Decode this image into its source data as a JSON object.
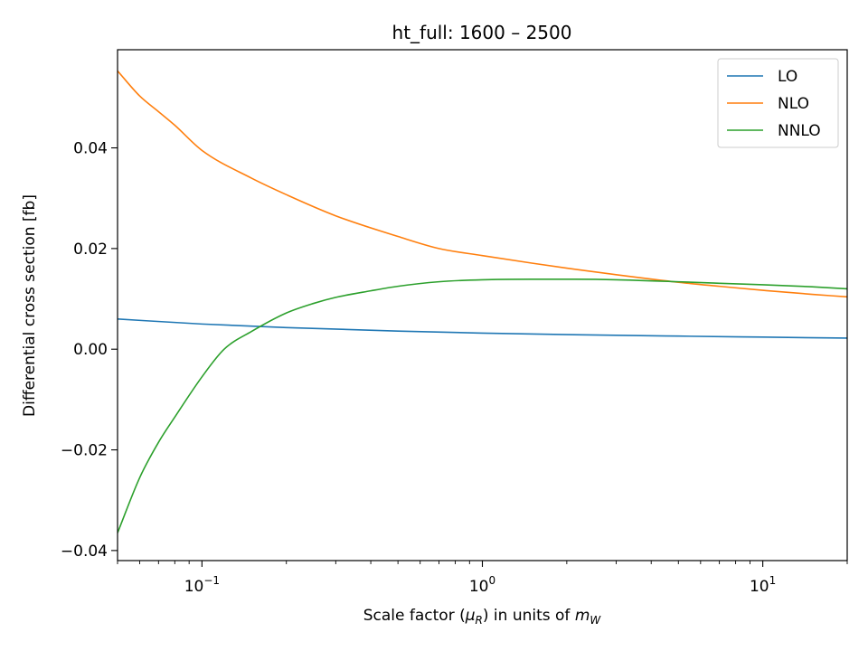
{
  "chart_data": {
    "type": "line",
    "title": "ht_full: 1600 – 2500",
    "xlabel": "Scale factor (μR) in units of mW",
    "ylabel": "Differential cross section [fb]",
    "xscale": "log",
    "xlim": [
      0.05,
      20
    ],
    "ylim": [
      -0.042,
      0.0595
    ],
    "x_tick_labels": [
      {
        "value": 0.1,
        "base": "10",
        "exp": "−1"
      },
      {
        "value": 1,
        "base": "10",
        "exp": "0"
      },
      {
        "value": 10,
        "base": "10",
        "exp": "1"
      }
    ],
    "y_ticks": [
      -0.04,
      -0.02,
      0.0,
      0.02,
      0.04
    ],
    "y_tick_labels": [
      "−0.04",
      "−0.02",
      "0.00",
      "0.02",
      "0.04"
    ],
    "grid": false,
    "legend_position": "top-right",
    "series": [
      {
        "name": "LO",
        "color": "#1f77b4",
        "x": [
          0.05,
          0.1,
          0.2,
          0.5,
          1,
          2,
          5,
          10,
          20
        ],
        "y": [
          0.006,
          0.005,
          0.0043,
          0.0036,
          0.0032,
          0.0029,
          0.0026,
          0.0024,
          0.0022
        ]
      },
      {
        "name": "NLO",
        "color": "#ff7f0e",
        "x": [
          0.05,
          0.06,
          0.07,
          0.08,
          0.1,
          0.15,
          0.2,
          0.3,
          0.5,
          0.7,
          1,
          1.5,
          2,
          3,
          5,
          7,
          10,
          15,
          20
        ],
        "y": [
          0.0553,
          0.0503,
          0.0472,
          0.0445,
          0.0395,
          0.034,
          0.0307,
          0.0265,
          0.0224,
          0.02,
          0.0186,
          0.0171,
          0.0161,
          0.0148,
          0.0133,
          0.0125,
          0.0117,
          0.0109,
          0.0104
        ]
      },
      {
        "name": "NNLO",
        "color": "#2ca02c",
        "x": [
          0.05,
          0.06,
          0.07,
          0.08,
          0.1,
          0.12,
          0.15,
          0.2,
          0.25,
          0.3,
          0.4,
          0.5,
          0.7,
          1,
          1.5,
          2,
          3,
          5,
          7,
          10,
          15,
          20
        ],
        "y": [
          -0.0365,
          -0.0255,
          -0.0185,
          -0.0135,
          -0.0055,
          0.0,
          0.0035,
          0.0072,
          0.0091,
          0.0103,
          0.0116,
          0.0125,
          0.0134,
          0.0138,
          0.0139,
          0.0139,
          0.0138,
          0.0134,
          0.0131,
          0.0128,
          0.0124,
          0.012
        ]
      }
    ]
  }
}
